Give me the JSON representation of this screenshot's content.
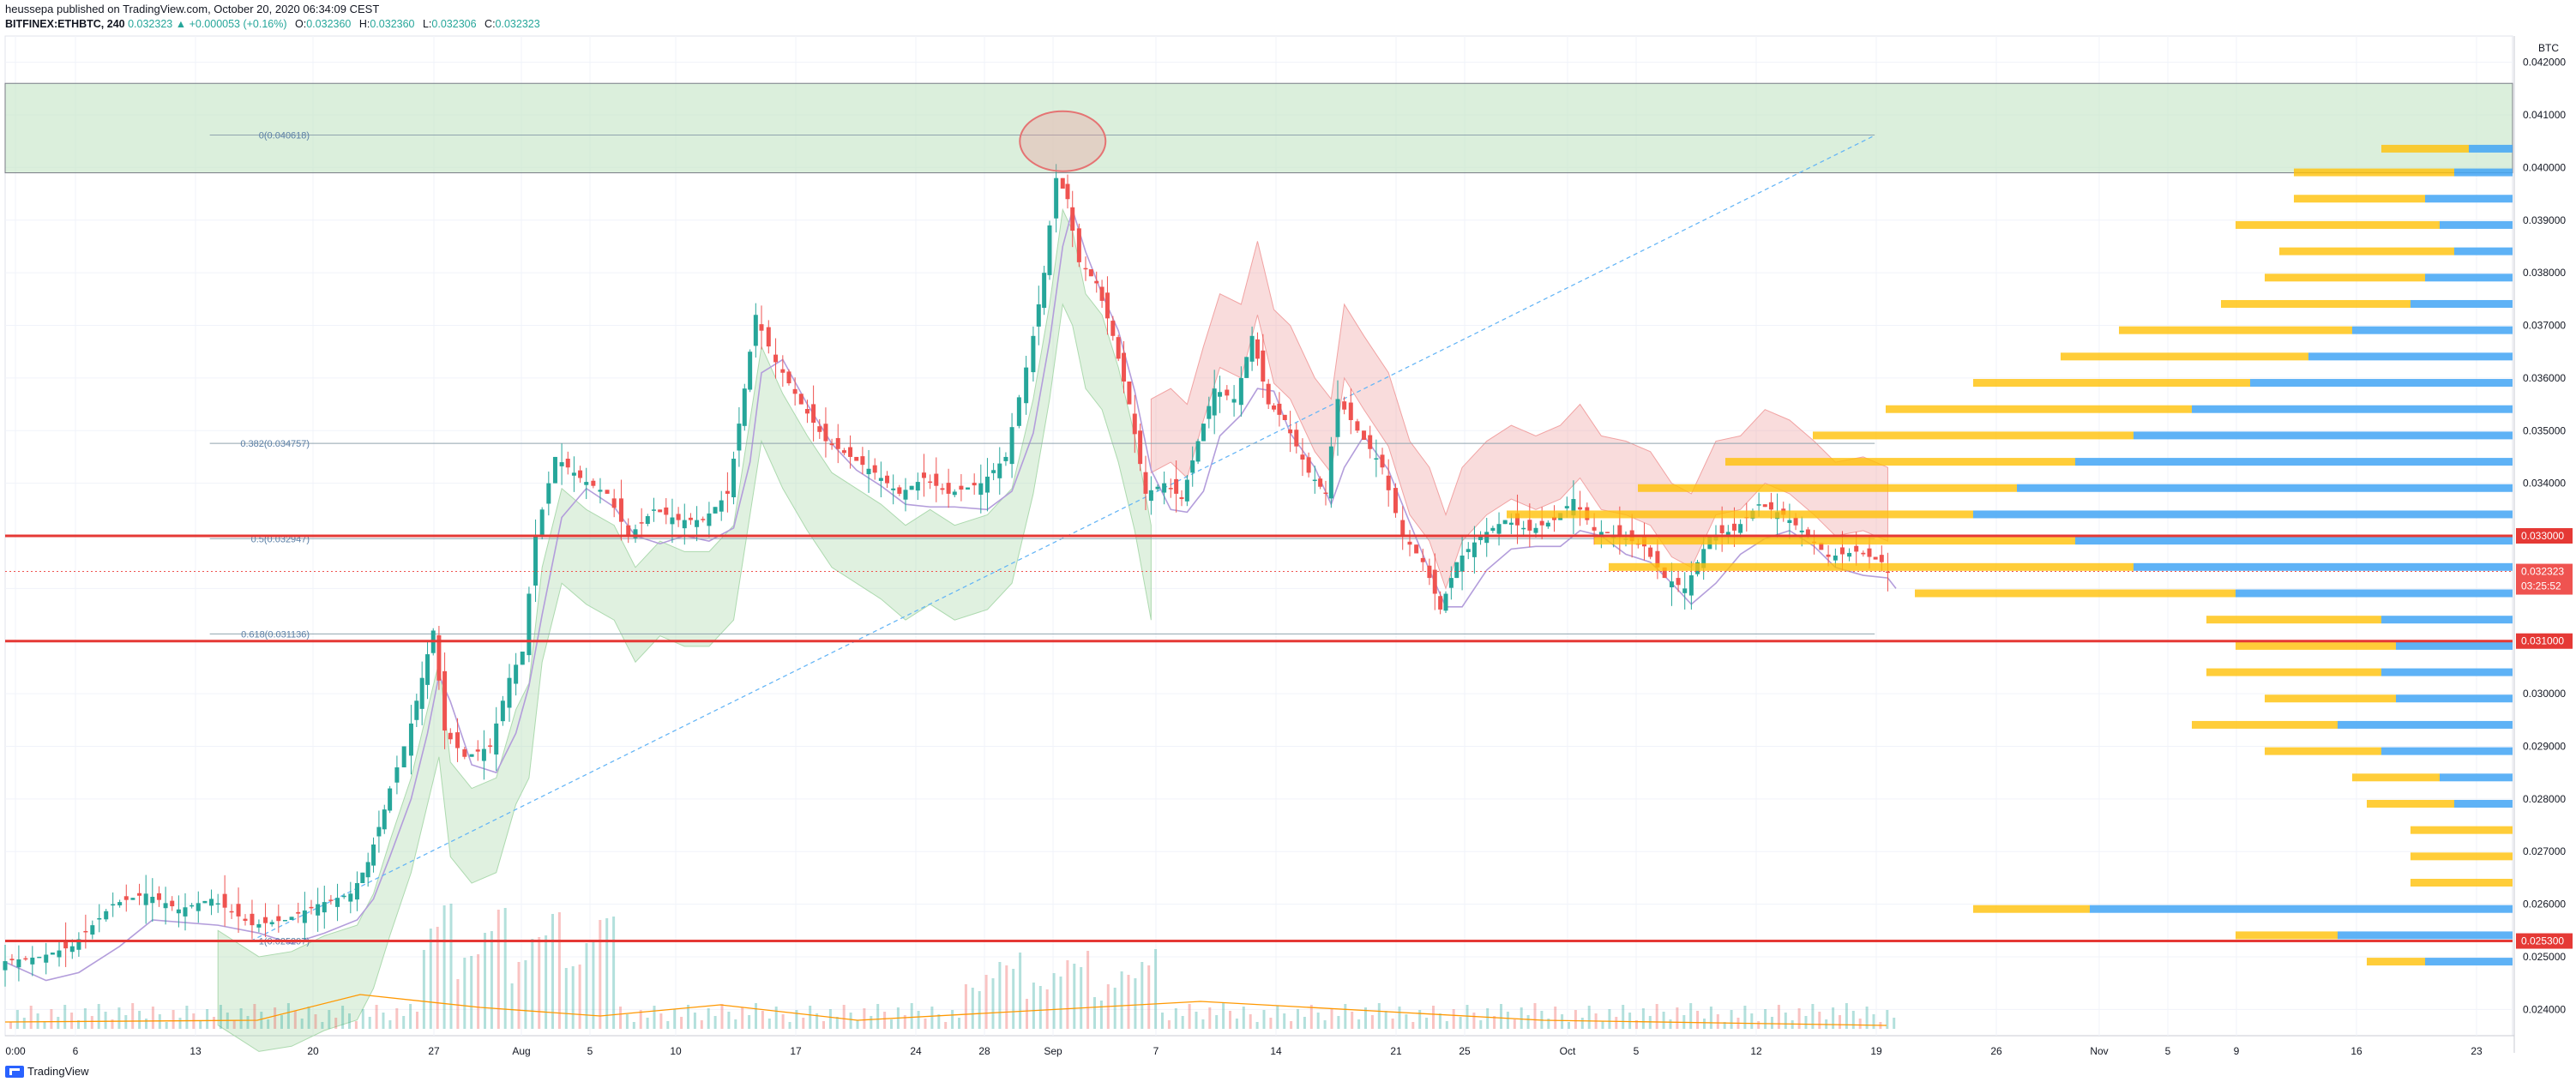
{
  "header": {
    "published_line": "heussepa published on TradingView.com, October 20, 2020 06:34:09 CEST",
    "symbol": "BITFINEX:ETHBTC, 240",
    "last": "0.032323",
    "change": "▲ +0.000053 (+0.16%)",
    "ohlc": [
      {
        "k": "O:",
        "v": "0.032360"
      },
      {
        "k": "H:",
        "v": "0.032360"
      },
      {
        "k": "L:",
        "v": "0.032306"
      },
      {
        "k": "C:",
        "v": "0.032323"
      }
    ]
  },
  "footer": {
    "brand": "TradingView"
  },
  "colors": {
    "up": "#26a69a",
    "down": "#ef5350",
    "hline": "#e53935",
    "fib_zone": "#c8e6c9",
    "cloud_bull": "#a5d6a7",
    "cloud_bear": "#ef9a9a",
    "kijun": "#ef5350",
    "tenkan": "#b39ddb",
    "vpvr_up": "#42a5f5",
    "vpvr_down": "#ffc107",
    "trendline": "#64b5f6",
    "vol_ma": "#ff9800"
  },
  "chart_data": {
    "type": "candlestick",
    "y_unit": "BTC",
    "ylim": [
      0.0235,
      0.0425
    ],
    "y_ticks": [
      "0.042000",
      "0.041000",
      "0.040000",
      "0.039000",
      "0.038000",
      "0.037000",
      "0.036000",
      "0.035000",
      "0.034000",
      "0.033000",
      "0.032000",
      "0.031000",
      "0.030000",
      "0.029000",
      "0.028000",
      "0.027000",
      "0.026000",
      "0.025000",
      "0.024000"
    ],
    "x_ticks": [
      "0:00",
      "6",
      "13",
      "20",
      "27",
      "Aug",
      "5",
      "10",
      "17",
      "24",
      "28",
      "Sep",
      "7",
      "14",
      "21",
      "25",
      "Oct",
      "5",
      "12",
      "19",
      "26",
      "Nov",
      "5",
      "9",
      "16",
      "23"
    ],
    "price_levels": [
      {
        "label": "0.033000",
        "value": 0.033
      },
      {
        "label": "0.031000",
        "value": 0.031
      },
      {
        "label": "0.025300",
        "value": 0.0253
      }
    ],
    "current_price": {
      "label": "0.032323",
      "value": 0.032323,
      "countdown": "03:25:52"
    },
    "fib_levels": [
      {
        "label": "0(0.040618)",
        "value": 0.040618
      },
      {
        "label": "0.382(0.034757)",
        "value": 0.034757
      },
      {
        "label": "0.5(0.032947)",
        "value": 0.032947
      },
      {
        "label": "0.618(0.031136)",
        "value": 0.031136
      },
      {
        "label": "1(0.025297)",
        "value": 0.025297
      }
    ],
    "resistance_zone": [
      0.0399,
      0.0416
    ],
    "price_path": [
      [
        0,
        0.0249
      ],
      [
        25,
        0.025
      ],
      [
        45,
        0.0252
      ],
      [
        70,
        0.026
      ],
      [
        90,
        0.0262
      ],
      [
        110,
        0.0259
      ],
      [
        130,
        0.0261
      ],
      [
        155,
        0.0256
      ],
      [
        175,
        0.0257
      ],
      [
        195,
        0.026
      ],
      [
        215,
        0.0262
      ],
      [
        225,
        0.0268
      ],
      [
        235,
        0.0278
      ],
      [
        248,
        0.029
      ],
      [
        258,
        0.0303
      ],
      [
        265,
        0.0312
      ],
      [
        272,
        0.0293
      ],
      [
        285,
        0.0288
      ],
      [
        300,
        0.029
      ],
      [
        312,
        0.0303
      ],
      [
        320,
        0.0308
      ],
      [
        328,
        0.033
      ],
      [
        340,
        0.0345
      ],
      [
        355,
        0.0341
      ],
      [
        372,
        0.0338
      ],
      [
        385,
        0.033
      ],
      [
        400,
        0.0335
      ],
      [
        415,
        0.0333
      ],
      [
        430,
        0.0333
      ],
      [
        445,
        0.0338
      ],
      [
        455,
        0.0358
      ],
      [
        462,
        0.0372
      ],
      [
        475,
        0.0363
      ],
      [
        490,
        0.0355
      ],
      [
        505,
        0.0348
      ],
      [
        520,
        0.0345
      ],
      [
        535,
        0.0342
      ],
      [
        550,
        0.0338
      ],
      [
        565,
        0.0341
      ],
      [
        580,
        0.0338
      ],
      [
        600,
        0.034
      ],
      [
        615,
        0.0345
      ],
      [
        628,
        0.0362
      ],
      [
        638,
        0.038
      ],
      [
        646,
        0.0398
      ],
      [
        652,
        0.0394
      ],
      [
        660,
        0.0382
      ],
      [
        670,
        0.0378
      ],
      [
        680,
        0.0368
      ],
      [
        690,
        0.0355
      ],
      [
        700,
        0.0338
      ],
      [
        712,
        0.034
      ],
      [
        722,
        0.0337
      ],
      [
        732,
        0.0348
      ],
      [
        742,
        0.0358
      ],
      [
        755,
        0.0356
      ],
      [
        765,
        0.0368
      ],
      [
        775,
        0.0355
      ],
      [
        785,
        0.0352
      ],
      [
        800,
        0.0342
      ],
      [
        810,
        0.0338
      ],
      [
        818,
        0.0356
      ],
      [
        830,
        0.035
      ],
      [
        845,
        0.0343
      ],
      [
        858,
        0.033
      ],
      [
        870,
        0.0325
      ],
      [
        880,
        0.0316
      ],
      [
        890,
        0.0325
      ],
      [
        905,
        0.033
      ],
      [
        920,
        0.0333
      ],
      [
        935,
        0.0331
      ],
      [
        950,
        0.0333
      ],
      [
        962,
        0.0337
      ],
      [
        975,
        0.0331
      ],
      [
        990,
        0.033
      ],
      [
        1005,
        0.0328
      ],
      [
        1018,
        0.0322
      ],
      [
        1030,
        0.032
      ],
      [
        1045,
        0.033
      ],
      [
        1060,
        0.0331
      ],
      [
        1075,
        0.0336
      ],
      [
        1090,
        0.0334
      ],
      [
        1105,
        0.033
      ],
      [
        1118,
        0.0326
      ],
      [
        1135,
        0.0327
      ],
      [
        1150,
        0.0325
      ],
      [
        1155,
        0.0323
      ]
    ],
    "volume_profile": [
      {
        "p": 0.04035,
        "up": 30,
        "dn": 15
      },
      {
        "p": 0.0399,
        "up": 55,
        "dn": 20
      },
      {
        "p": 0.0394,
        "up": 45,
        "dn": 30
      },
      {
        "p": 0.0389,
        "up": 70,
        "dn": 25
      },
      {
        "p": 0.0384,
        "up": 60,
        "dn": 20
      },
      {
        "p": 0.0379,
        "up": 55,
        "dn": 30
      },
      {
        "p": 0.0374,
        "up": 65,
        "dn": 35
      },
      {
        "p": 0.0369,
        "up": 80,
        "dn": 55
      },
      {
        "p": 0.0364,
        "up": 85,
        "dn": 70
      },
      {
        "p": 0.0359,
        "up": 95,
        "dn": 90
      },
      {
        "p": 0.0354,
        "up": 105,
        "dn": 110
      },
      {
        "p": 0.0349,
        "up": 110,
        "dn": 130
      },
      {
        "p": 0.0344,
        "up": 120,
        "dn": 150
      },
      {
        "p": 0.0339,
        "up": 130,
        "dn": 170
      },
      {
        "p": 0.0334,
        "up": 160,
        "dn": 185
      },
      {
        "p": 0.0329,
        "up": 165,
        "dn": 150
      },
      {
        "p": 0.0324,
        "up": 180,
        "dn": 130
      },
      {
        "p": 0.0319,
        "up": 110,
        "dn": 95
      },
      {
        "p": 0.0314,
        "up": 60,
        "dn": 45
      },
      {
        "p": 0.0309,
        "up": 55,
        "dn": 40
      },
      {
        "p": 0.0304,
        "up": 60,
        "dn": 45
      },
      {
        "p": 0.0299,
        "up": 45,
        "dn": 40
      },
      {
        "p": 0.0294,
        "up": 50,
        "dn": 60
      },
      {
        "p": 0.0289,
        "up": 40,
        "dn": 45
      },
      {
        "p": 0.0284,
        "up": 30,
        "dn": 25
      },
      {
        "p": 0.0279,
        "up": 30,
        "dn": 20
      },
      {
        "p": 0.0274,
        "up": 35,
        "dn": 0
      },
      {
        "p": 0.0269,
        "up": 35,
        "dn": 0
      },
      {
        "p": 0.0264,
        "up": 35,
        "dn": 0
      },
      {
        "p": 0.0259,
        "up": 40,
        "dn": 145
      },
      {
        "p": 0.0254,
        "up": 35,
        "dn": 60
      },
      {
        "p": 0.0249,
        "up": 20,
        "dn": 30
      }
    ]
  }
}
